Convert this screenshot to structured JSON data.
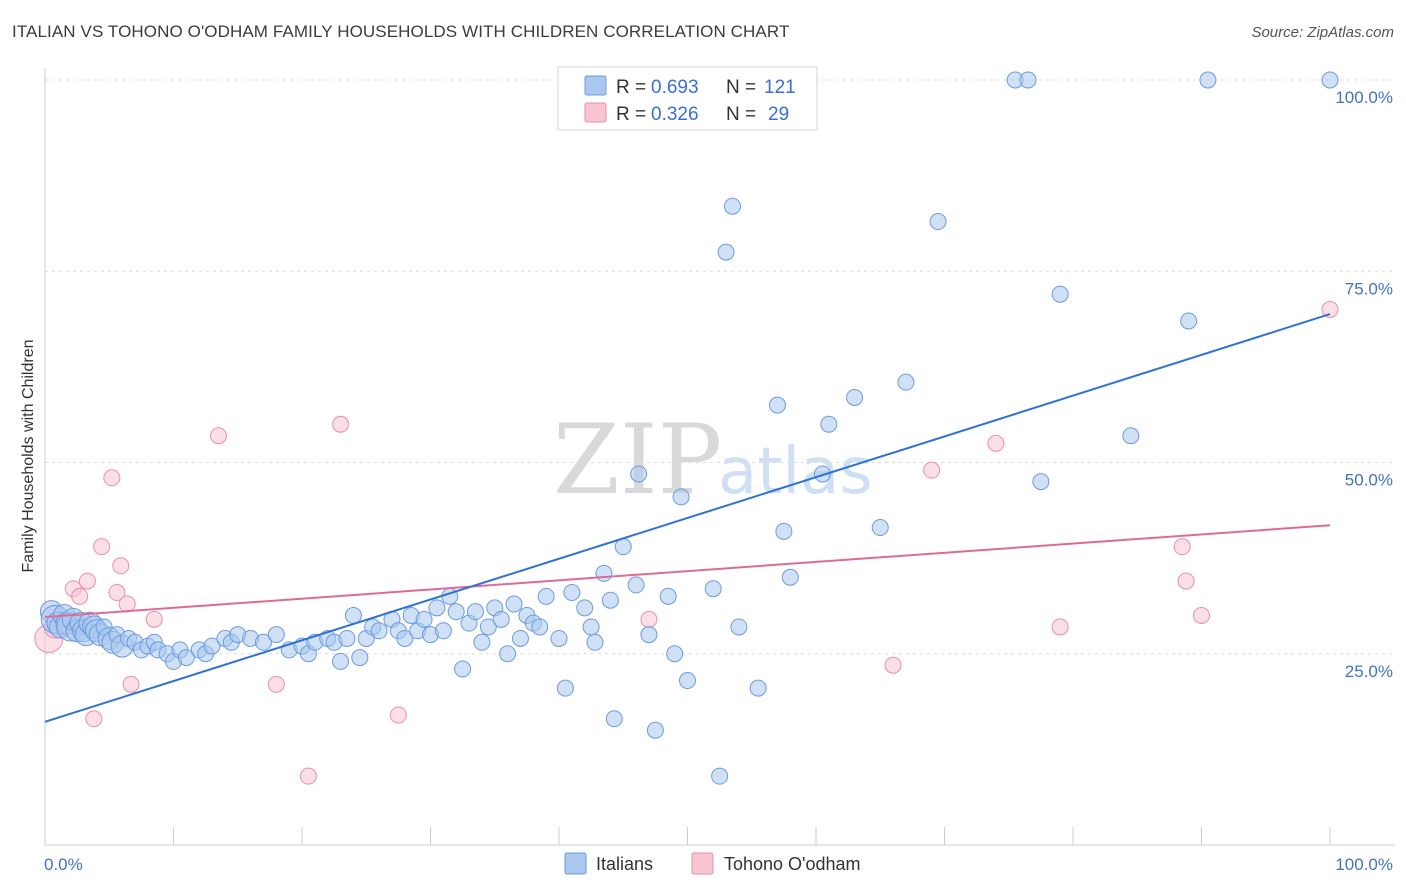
{
  "title": "ITALIAN VS TOHONO O'ODHAM FAMILY HOUSEHOLDS WITH CHILDREN CORRELATION CHART",
  "source": "Source: ZipAtlas.com",
  "watermark": {
    "zip": "ZIP",
    "atlas": "atlas"
  },
  "colors": {
    "italians_fill": "#aac8ee",
    "italians_stroke": "#6b9be0",
    "italians_line": "#2f72d3",
    "tohono_fill": "#f7c4d2",
    "tohono_stroke": "#e98fab",
    "tohono_line": "#e06a96",
    "grid": "#dcdcdc",
    "tick_text": "#4472c4"
  },
  "legend": {
    "italians": {
      "r_label": "R =",
      "r_value": "0.693",
      "n_label": "N =",
      "n_value": "121"
    },
    "tohono": {
      "r_label": "R =",
      "r_value": "0.326",
      "n_label": "N =",
      "n_value": "29"
    }
  },
  "chart_data": {
    "type": "scatter",
    "title": "ITALIAN VS TOHONO O'ODHAM FAMILY HOUSEHOLDS WITH CHILDREN CORRELATION CHART",
    "xlabel": "",
    "ylabel": "Family Households with Children",
    "xlim": [
      0,
      100
    ],
    "ylim": [
      0,
      100
    ],
    "x_tick_labels": [
      "0.0%",
      "100.0%"
    ],
    "y_tick_labels": [
      {
        "value": 25,
        "label": "25.0%"
      },
      {
        "value": 50,
        "label": "50.0%"
      },
      {
        "value": 75,
        "label": "75.0%"
      },
      {
        "value": 100,
        "label": "100.0%"
      }
    ],
    "grid": true,
    "legend_position": "bottom",
    "series": [
      {
        "name": "Italians",
        "r": 0.693,
        "n": 121,
        "trend": {
          "x": [
            0,
            100
          ],
          "y": [
            16.1,
            69.4
          ]
        },
        "points": [
          [
            0.5,
            30.5,
            2
          ],
          [
            0.8,
            29.5,
            3
          ],
          [
            1.0,
            29.0,
            2
          ],
          [
            1.2,
            28.5,
            2
          ],
          [
            1.5,
            30.0,
            2
          ],
          [
            1.7,
            29.0,
            2
          ],
          [
            2.0,
            28.5,
            3
          ],
          [
            2.2,
            29.5,
            2
          ],
          [
            2.5,
            28.0,
            2
          ],
          [
            2.8,
            29.0,
            2
          ],
          [
            3.0,
            28.0,
            2
          ],
          [
            3.2,
            27.5,
            2
          ],
          [
            3.5,
            29.0,
            2
          ],
          [
            3.8,
            28.5,
            2
          ],
          [
            4.0,
            28.0,
            2
          ],
          [
            4.3,
            27.5,
            2
          ],
          [
            4.6,
            28.5,
            1
          ],
          [
            5.0,
            27.0,
            2
          ],
          [
            5.3,
            26.5,
            2
          ],
          [
            5.6,
            27.5,
            1
          ],
          [
            6.0,
            26.0,
            2
          ],
          [
            6.5,
            27.0,
            1
          ],
          [
            7.0,
            26.5,
            1
          ],
          [
            7.5,
            25.5,
            1
          ],
          [
            8.0,
            26.0,
            1
          ],
          [
            8.5,
            26.5,
            1
          ],
          [
            8.8,
            25.5,
            1
          ],
          [
            9.5,
            25.0,
            1
          ],
          [
            10.0,
            24.0,
            1
          ],
          [
            10.5,
            25.5,
            1
          ],
          [
            11.0,
            24.5,
            1
          ],
          [
            12.0,
            25.5,
            1
          ],
          [
            12.5,
            25.0,
            1
          ],
          [
            13.0,
            26.0,
            1
          ],
          [
            14.0,
            27.0,
            1
          ],
          [
            14.5,
            26.5,
            1
          ],
          [
            15.0,
            27.5,
            1
          ],
          [
            16.0,
            27.0,
            1
          ],
          [
            17.0,
            26.5,
            1
          ],
          [
            18.0,
            27.5,
            1
          ],
          [
            19.0,
            25.5,
            1
          ],
          [
            20.0,
            26.0,
            1
          ],
          [
            20.5,
            25.0,
            1
          ],
          [
            21.0,
            26.5,
            1
          ],
          [
            22.0,
            27.0,
            1
          ],
          [
            22.5,
            26.5,
            1
          ],
          [
            23.0,
            24.0,
            1
          ],
          [
            23.5,
            27.0,
            1
          ],
          [
            24.0,
            30.0,
            1
          ],
          [
            24.5,
            24.5,
            1
          ],
          [
            25.0,
            27.0,
            1
          ],
          [
            25.5,
            28.5,
            1
          ],
          [
            26.0,
            28.0,
            1
          ],
          [
            27.0,
            29.5,
            1
          ],
          [
            27.5,
            28.0,
            1
          ],
          [
            28.0,
            27.0,
            1
          ],
          [
            28.5,
            30.0,
            1
          ],
          [
            29.0,
            28.0,
            1
          ],
          [
            29.5,
            29.5,
            1
          ],
          [
            30.0,
            27.5,
            1
          ],
          [
            30.5,
            31.0,
            1
          ],
          [
            31.0,
            28.0,
            1
          ],
          [
            31.5,
            32.5,
            1
          ],
          [
            32.0,
            30.5,
            1
          ],
          [
            32.5,
            23.0,
            1
          ],
          [
            33.0,
            29.0,
            1
          ],
          [
            33.5,
            30.5,
            1
          ],
          [
            34.0,
            26.5,
            1
          ],
          [
            34.5,
            28.5,
            1
          ],
          [
            35.0,
            31.0,
            1
          ],
          [
            35.5,
            29.5,
            1
          ],
          [
            36.0,
            25.0,
            1
          ],
          [
            36.5,
            31.5,
            1
          ],
          [
            37.0,
            27.0,
            1
          ],
          [
            37.5,
            30.0,
            1
          ],
          [
            38.0,
            29.0,
            1
          ],
          [
            38.5,
            28.5,
            1
          ],
          [
            39.0,
            32.5,
            1
          ],
          [
            40.0,
            27.0,
            1
          ],
          [
            40.5,
            20.5,
            1
          ],
          [
            41.0,
            33.0,
            1
          ],
          [
            42.0,
            31.0,
            1
          ],
          [
            42.5,
            28.5,
            1
          ],
          [
            42.8,
            26.5,
            1
          ],
          [
            43.5,
            35.5,
            1
          ],
          [
            44.0,
            32.0,
            1
          ],
          [
            44.3,
            16.5,
            1
          ],
          [
            45.0,
            39.0,
            1
          ],
          [
            46.0,
            34.0,
            1
          ],
          [
            46.2,
            48.5,
            1
          ],
          [
            47.0,
            27.5,
            1
          ],
          [
            47.5,
            15.0,
            1
          ],
          [
            48.5,
            32.5,
            1
          ],
          [
            49.0,
            25.0,
            1
          ],
          [
            49.5,
            45.5,
            1
          ],
          [
            50.0,
            21.5,
            1
          ],
          [
            52.0,
            33.5,
            1
          ],
          [
            52.5,
            9.0,
            1
          ],
          [
            53.0,
            77.5,
            1
          ],
          [
            53.5,
            83.5,
            1
          ],
          [
            54.0,
            28.5,
            1
          ],
          [
            55.5,
            20.5,
            1
          ],
          [
            57.5,
            41.0,
            1
          ],
          [
            58.0,
            35.0,
            1
          ],
          [
            60.5,
            48.5,
            1
          ],
          [
            61.0,
            55.0,
            1
          ],
          [
            63.0,
            58.5,
            1
          ],
          [
            65.0,
            41.5,
            1
          ],
          [
            67.0,
            60.5,
            1
          ],
          [
            69.5,
            81.5,
            1
          ],
          [
            75.5,
            100.0,
            1
          ],
          [
            76.5,
            100.0,
            1
          ],
          [
            77.5,
            47.5,
            1
          ],
          [
            79.0,
            72.0,
            1
          ],
          [
            84.5,
            53.5,
            1
          ],
          [
            89.0,
            68.5,
            1
          ],
          [
            90.5,
            100.0,
            1
          ],
          [
            100.0,
            100.0,
            1
          ],
          [
            57.0,
            57.5,
            1
          ]
        ]
      },
      {
        "name": "Tohono O'odham",
        "r": 0.326,
        "n": 29,
        "trend": {
          "x": [
            0,
            100
          ],
          "y": [
            29.8,
            41.8
          ]
        },
        "points": [
          [
            0.3,
            27.0,
            3
          ],
          [
            0.8,
            28.5,
            2
          ],
          [
            1.2,
            29.0,
            1
          ],
          [
            1.6,
            28.5,
            1
          ],
          [
            2.2,
            33.5,
            1
          ],
          [
            2.7,
            32.5,
            1
          ],
          [
            3.3,
            34.5,
            1
          ],
          [
            3.8,
            16.5,
            1
          ],
          [
            4.4,
            39.0,
            1
          ],
          [
            5.2,
            48.0,
            1
          ],
          [
            5.6,
            33.0,
            1
          ],
          [
            5.9,
            36.5,
            1
          ],
          [
            6.4,
            31.5,
            1
          ],
          [
            6.7,
            21.0,
            1
          ],
          [
            8.5,
            29.5,
            1
          ],
          [
            13.5,
            53.5,
            1
          ],
          [
            18.0,
            21.0,
            1
          ],
          [
            20.5,
            9.0,
            1
          ],
          [
            23.0,
            55.0,
            1
          ],
          [
            27.5,
            17.0,
            1
          ],
          [
            47.0,
            29.5,
            1
          ],
          [
            66.0,
            23.5,
            1
          ],
          [
            69.0,
            49.0,
            1
          ],
          [
            74.0,
            52.5,
            1
          ],
          [
            79.0,
            28.5,
            1
          ],
          [
            88.5,
            39.0,
            1
          ],
          [
            88.8,
            34.5,
            1
          ],
          [
            90.0,
            30.0,
            1
          ],
          [
            100.0,
            70.0,
            1
          ]
        ]
      }
    ]
  },
  "bottom_legend": {
    "italians": "Italians",
    "tohono": "Tohono O'odham"
  }
}
